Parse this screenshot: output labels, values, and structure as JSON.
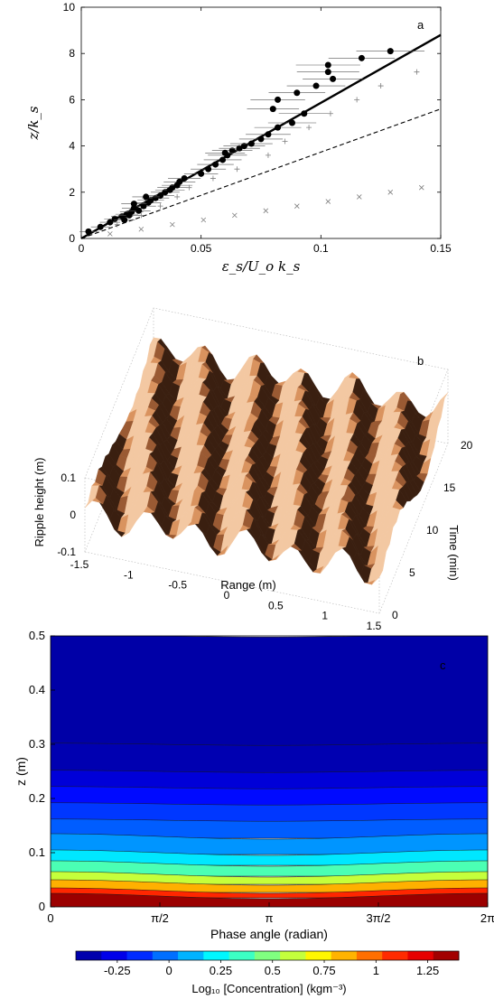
{
  "chart_data": [
    {
      "type": "scatter",
      "panel_label": "a",
      "xlabel": "ε_s/U_o k_s",
      "ylabel": "z/k_s",
      "xlim": [
        0,
        0.15
      ],
      "ylim": [
        0,
        10
      ],
      "xticks": [
        "0",
        "0.05",
        "0.1",
        "0.15"
      ],
      "yticks": [
        "0",
        "2",
        "4",
        "6",
        "8",
        "10"
      ],
      "series": [
        {
          "marker": "filled-circle-with-errorbars",
          "points": [
            {
              "x": 0.003,
              "y": 0.3
            },
            {
              "x": 0.008,
              "y": 0.5
            },
            {
              "x": 0.012,
              "y": 0.7
            },
            {
              "x": 0.014,
              "y": 0.85
            },
            {
              "x": 0.017,
              "y": 0.95
            },
            {
              "x": 0.019,
              "y": 1.05
            },
            {
              "x": 0.021,
              "y": 1.15
            },
            {
              "x": 0.022,
              "y": 1.3
            },
            {
              "x": 0.024,
              "y": 1.2
            },
            {
              "x": 0.026,
              "y": 1.4
            },
            {
              "x": 0.028,
              "y": 1.55
            },
            {
              "x": 0.029,
              "y": 1.65
            },
            {
              "x": 0.031,
              "y": 1.75
            },
            {
              "x": 0.033,
              "y": 1.85
            },
            {
              "x": 0.035,
              "y": 2.0
            },
            {
              "x": 0.037,
              "y": 2.1
            },
            {
              "x": 0.038,
              "y": 2.2
            },
            {
              "x": 0.04,
              "y": 2.3
            },
            {
              "x": 0.041,
              "y": 2.45
            },
            {
              "x": 0.043,
              "y": 2.6
            },
            {
              "x": 0.022,
              "y": 1.5
            },
            {
              "x": 0.027,
              "y": 1.8
            },
            {
              "x": 0.02,
              "y": 1.0
            },
            {
              "x": 0.018,
              "y": 0.8
            },
            {
              "x": 0.05,
              "y": 2.8
            },
            {
              "x": 0.053,
              "y": 3.0
            },
            {
              "x": 0.056,
              "y": 3.2
            },
            {
              "x": 0.059,
              "y": 3.4
            },
            {
              "x": 0.061,
              "y": 3.6
            },
            {
              "x": 0.063,
              "y": 3.8
            },
            {
              "x": 0.066,
              "y": 3.9
            },
            {
              "x": 0.06,
              "y": 3.7
            },
            {
              "x": 0.068,
              "y": 4.0
            },
            {
              "x": 0.071,
              "y": 4.1
            },
            {
              "x": 0.075,
              "y": 4.3
            },
            {
              "x": 0.078,
              "y": 4.5
            },
            {
              "x": 0.082,
              "y": 4.8
            },
            {
              "x": 0.088,
              "y": 5.0
            },
            {
              "x": 0.093,
              "y": 5.4
            },
            {
              "x": 0.08,
              "y": 5.6
            },
            {
              "x": 0.082,
              "y": 6.0
            },
            {
              "x": 0.09,
              "y": 6.3
            },
            {
              "x": 0.098,
              "y": 6.6
            },
            {
              "x": 0.105,
              "y": 6.9
            },
            {
              "x": 0.103,
              "y": 7.2
            },
            {
              "x": 0.103,
              "y": 7.5
            },
            {
              "x": 0.117,
              "y": 7.8
            },
            {
              "x": 0.129,
              "y": 8.1
            }
          ]
        },
        {
          "marker": "plus",
          "points": [
            {
              "x": 0.015,
              "y": 0.6
            },
            {
              "x": 0.025,
              "y": 1.0
            },
            {
              "x": 0.033,
              "y": 1.4
            },
            {
              "x": 0.04,
              "y": 1.8
            },
            {
              "x": 0.045,
              "y": 2.2
            },
            {
              "x": 0.055,
              "y": 2.6
            },
            {
              "x": 0.065,
              "y": 3.0
            },
            {
              "x": 0.078,
              "y": 3.6
            },
            {
              "x": 0.085,
              "y": 4.2
            },
            {
              "x": 0.095,
              "y": 4.8
            },
            {
              "x": 0.104,
              "y": 5.4
            },
            {
              "x": 0.115,
              "y": 6.0
            },
            {
              "x": 0.125,
              "y": 6.6
            },
            {
              "x": 0.14,
              "y": 7.2
            }
          ]
        },
        {
          "marker": "x",
          "points": [
            {
              "x": 0.012,
              "y": 0.2
            },
            {
              "x": 0.025,
              "y": 0.4
            },
            {
              "x": 0.038,
              "y": 0.6
            },
            {
              "x": 0.051,
              "y": 0.8
            },
            {
              "x": 0.064,
              "y": 1.0
            },
            {
              "x": 0.077,
              "y": 1.2
            },
            {
              "x": 0.09,
              "y": 1.4
            },
            {
              "x": 0.103,
              "y": 1.6
            },
            {
              "x": 0.116,
              "y": 1.8
            },
            {
              "x": 0.129,
              "y": 2.0
            },
            {
              "x": 0.142,
              "y": 2.2
            }
          ]
        },
        {
          "style": "solid",
          "line": [
            [
              0,
              0
            ],
            [
              0.15,
              8.8
            ]
          ]
        },
        {
          "style": "dashed",
          "line": [
            [
              0,
              0
            ],
            [
              0.15,
              5.6
            ]
          ]
        }
      ]
    },
    {
      "type": "surface",
      "panel_label": "b",
      "xlabel": "Range (m)",
      "ylabel": "Time (min)",
      "zlabel": "Ripple height (m)",
      "xlim": [
        -1.5,
        1.5
      ],
      "ylim": [
        0,
        20
      ],
      "zlim": [
        -0.1,
        0.1
      ],
      "xticks": [
        "-1.5",
        "-1",
        "-0.5",
        "0",
        "0.5",
        "1",
        "1.5"
      ],
      "yticks": [
        "0",
        "5",
        "10",
        "15",
        "20"
      ],
      "zticks": [
        "0.1",
        "0",
        "-0.1"
      ],
      "ripple_wavelength_m": 0.5,
      "colors": [
        "#f3c8a2",
        "#d9935f",
        "#9a5a33",
        "#3a1f10"
      ]
    },
    {
      "type": "heatmap",
      "panel_label": "c",
      "xlabel": "Phase angle (radian)",
      "ylabel": "z (m)",
      "xlim": [
        0,
        6.2832
      ],
      "ylim": [
        0,
        0.5
      ],
      "xticks": [
        "0",
        "π/2",
        "π",
        "3π/2",
        "2π"
      ],
      "yticks": [
        "0",
        "0.1",
        "0.2",
        "0.3",
        "0.4",
        "0.5"
      ],
      "colorbar": {
        "label": "Log₁₀ [Concentration] (kgm⁻³)",
        "range": [
          -0.45,
          1.4
        ],
        "ticks": [
          "-0.25",
          "0",
          "0.25",
          "0.5",
          "0.75",
          "1",
          "1.25"
        ],
        "tick_values": [
          -0.25,
          0,
          0.25,
          0.5,
          0.75,
          1,
          1.25
        ]
      },
      "profile": [
        {
          "z": 0.5,
          "v": -0.4
        },
        {
          "z": 0.3,
          "v": -0.38
        },
        {
          "z": 0.25,
          "v": -0.3
        },
        {
          "z": 0.22,
          "v": -0.2
        },
        {
          "z": 0.19,
          "v": -0.12
        },
        {
          "z": 0.16,
          "v": -0.05
        },
        {
          "z": 0.13,
          "v": 0.05
        },
        {
          "z": 0.1,
          "v": 0.2
        },
        {
          "z": 0.08,
          "v": 0.38
        },
        {
          "z": 0.06,
          "v": 0.6
        },
        {
          "z": 0.045,
          "v": 0.85
        },
        {
          "z": 0.03,
          "v": 1.1
        },
        {
          "z": 0.02,
          "v": 1.35
        }
      ]
    }
  ],
  "colors": {
    "jet": [
      "#00008f",
      "#0000ff",
      "#0080ff",
      "#00ffff",
      "#80ff80",
      "#ffff00",
      "#ff8000",
      "#ff0000",
      "#800000"
    ],
    "marker": "#000000",
    "secondary_marker": "#7f7f7f"
  }
}
